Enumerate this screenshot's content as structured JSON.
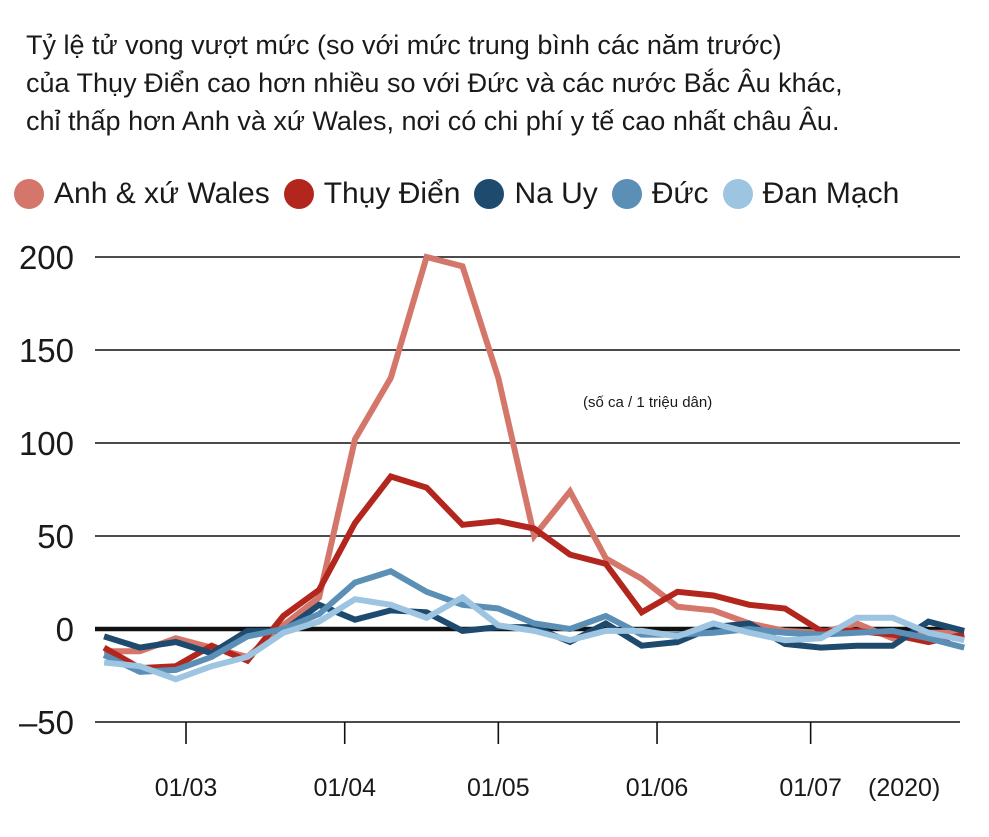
{
  "title_lines": [
    "Tỷ lệ tử vong vượt mức (so với mức trung bình các năm trước)",
    "của Thụy Điển cao hơn nhiều so với Đức và các nước Bắc Âu khác,",
    "chỉ thấp hơn Anh và xứ Wales, nơi có chi phí y tế cao nhất châu Âu."
  ],
  "chart_data": {
    "type": "line",
    "title": "Tỷ lệ tử vong vượt mức (so với mức trung bình các năm trước) của Thụy Điển cao hơn nhiều so với Đức và các nước Bắc Âu khác, chỉ thấp hơn Anh và xứ Wales, nơi có chi phí y tế cao nhất châu Âu.",
    "annotation": "(số ca / 1 triệu dân)",
    "x_ticks": [
      "01/03",
      "01/04",
      "01/05",
      "01/06",
      "01/07"
    ],
    "x_year_label": "(2020)",
    "y_ticks": [
      "200",
      "150",
      "100",
      "50",
      "0",
      "–50"
    ],
    "ylim": [
      -50,
      200
    ],
    "grid": true,
    "legend_position": "top",
    "x_dates": [
      "2020-02-14",
      "2020-02-21",
      "2020-02-28",
      "2020-03-06",
      "2020-03-13",
      "2020-03-20",
      "2020-03-27",
      "2020-04-03",
      "2020-04-10",
      "2020-04-17",
      "2020-04-24",
      "2020-05-01",
      "2020-05-08",
      "2020-05-15",
      "2020-05-22",
      "2020-05-29",
      "2020-06-05",
      "2020-06-12",
      "2020-06-19",
      "2020-06-26",
      "2020-07-03",
      "2020-07-10",
      "2020-07-17",
      "2020-07-24",
      "2020-07-31"
    ],
    "series": [
      {
        "name": "Anh & xứ Wales",
        "color": "#D4776A",
        "values": [
          -12,
          -12,
          -5,
          -10,
          -15,
          2,
          17,
          102,
          135,
          200,
          195,
          135,
          50,
          74,
          38,
          27,
          12,
          10,
          3,
          -1,
          -2,
          3,
          -5,
          -2,
          -2
        ]
      },
      {
        "name": "Thụy Điển",
        "color": "#B3261E",
        "values": [
          -10,
          -21,
          -20,
          -9,
          -17,
          7,
          21,
          57,
          82,
          76,
          56,
          58,
          54,
          40,
          35,
          9,
          20,
          18,
          13,
          11,
          -1,
          -1,
          -3,
          -7,
          -3
        ]
      },
      {
        "name": "Na Uy",
        "color": "#1E4A6E",
        "values": [
          -4,
          -10,
          -7,
          -13,
          -1,
          -1,
          13,
          5,
          10,
          9,
          -1,
          1,
          1,
          -7,
          3,
          -9,
          -7,
          1,
          3,
          -8,
          -10,
          -9,
          -9,
          4,
          -1
        ]
      },
      {
        "name": "Đức",
        "color": "#5B8FB5",
        "values": [
          -14,
          -23,
          -22,
          -15,
          -4,
          0,
          8,
          25,
          31,
          20,
          13,
          11,
          3,
          0,
          7,
          -3,
          -3,
          -2,
          0,
          -2,
          -3,
          -2,
          -1,
          -5,
          -10
        ]
      },
      {
        "name": "Đan Mạch",
        "color": "#9DC4E0",
        "values": [
          -18,
          -20,
          -27,
          -20,
          -15,
          -2,
          4,
          16,
          13,
          6,
          17,
          2,
          -1,
          -6,
          -1,
          -1,
          -4,
          3,
          -2,
          -6,
          -5,
          6,
          6,
          -2,
          -6
        ]
      }
    ]
  }
}
